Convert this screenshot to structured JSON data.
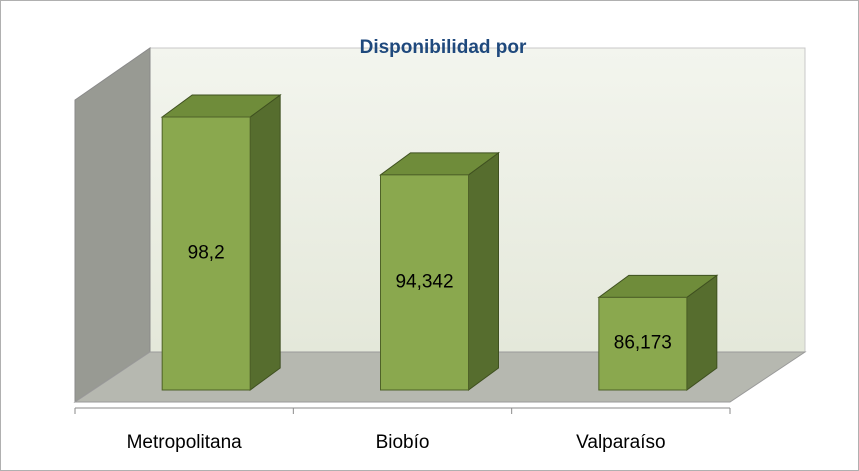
{
  "chart_data": {
    "type": "bar3d",
    "title": "Disponibilidad  por",
    "categories": [
      "Metropolitana",
      "Biobío",
      "Valparaíso"
    ],
    "values": [
      98.2,
      94.342,
      86.173
    ],
    "value_labels": [
      "98,2",
      "94,342",
      "86,173"
    ],
    "color": "#8aa84e",
    "ylim": [
      80,
      100
    ]
  }
}
